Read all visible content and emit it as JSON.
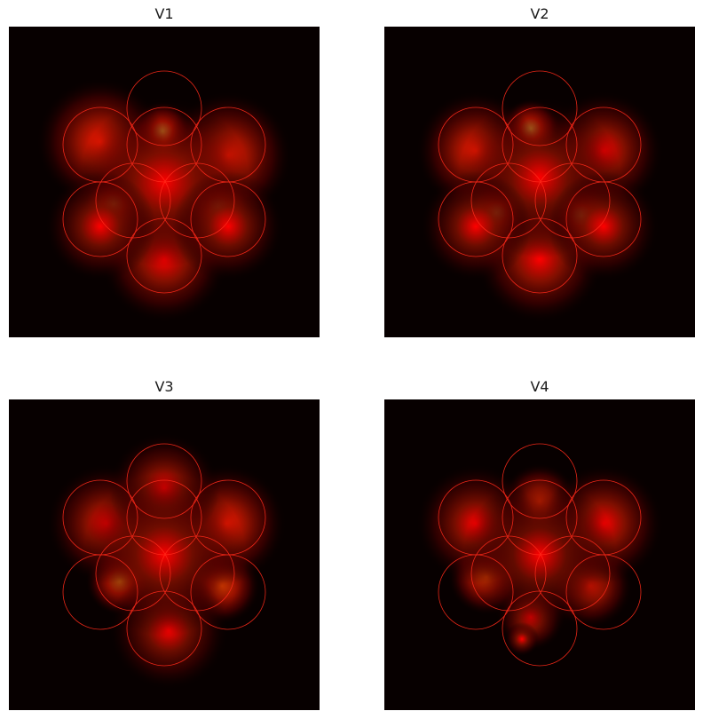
{
  "figure": {
    "background_color": "#ffffff",
    "panel_background": "#070000",
    "circle_color": "#ff2a1a",
    "colormap": "hot"
  },
  "chart_data": [
    {
      "type": "heatmap",
      "title": "V1",
      "xlabel": "",
      "ylabel": "",
      "axes_visible": false,
      "xlim": [
        0,
        350
      ],
      "ylim": [
        350,
        0
      ],
      "circles": [
        {
          "cx": 175,
          "cy": 92,
          "r": 42
        },
        {
          "cx": 103,
          "cy": 133,
          "r": 42
        },
        {
          "cx": 247,
          "cy": 133,
          "r": 42
        },
        {
          "cx": 175,
          "cy": 133,
          "r": 42
        },
        {
          "cx": 140,
          "cy": 196,
          "r": 42
        },
        {
          "cx": 212,
          "cy": 196,
          "r": 42
        },
        {
          "cx": 103,
          "cy": 217,
          "r": 42
        },
        {
          "cx": 247,
          "cy": 217,
          "r": 42
        },
        {
          "cx": 175,
          "cy": 258,
          "r": 42
        }
      ],
      "hotspots": [
        {
          "x": 173,
          "y": 118,
          "sigma": 14,
          "intensity": 0.95
        },
        {
          "x": 118,
          "y": 200,
          "sigma": 14,
          "intensity": 0.95
        },
        {
          "x": 236,
          "y": 203,
          "sigma": 14,
          "intensity": 1.0
        },
        {
          "x": 103,
          "y": 130,
          "sigma": 30,
          "intensity": 0.6
        },
        {
          "x": 247,
          "y": 145,
          "sigma": 30,
          "intensity": 0.6
        },
        {
          "x": 175,
          "y": 262,
          "sigma": 30,
          "intensity": 0.55
        },
        {
          "x": 175,
          "y": 175,
          "sigma": 40,
          "intensity": 0.5
        },
        {
          "x": 103,
          "y": 225,
          "sigma": 26,
          "intensity": 0.45
        },
        {
          "x": 247,
          "y": 225,
          "sigma": 26,
          "intensity": 0.45
        }
      ]
    },
    {
      "type": "heatmap",
      "title": "V2",
      "xlabel": "",
      "ylabel": "",
      "axes_visible": false,
      "xlim": [
        0,
        350
      ],
      "ylim": [
        350,
        0
      ],
      "circles": [
        {
          "cx": 175,
          "cy": 92,
          "r": 42
        },
        {
          "cx": 103,
          "cy": 133,
          "r": 42
        },
        {
          "cx": 247,
          "cy": 133,
          "r": 42
        },
        {
          "cx": 175,
          "cy": 133,
          "r": 42
        },
        {
          "cx": 140,
          "cy": 196,
          "r": 42
        },
        {
          "cx": 212,
          "cy": 196,
          "r": 42
        },
        {
          "cx": 103,
          "cy": 217,
          "r": 42
        },
        {
          "cx": 247,
          "cy": 217,
          "r": 42
        },
        {
          "cx": 175,
          "cy": 258,
          "r": 42
        }
      ],
      "hotspots": [
        {
          "x": 165,
          "y": 115,
          "sigma": 14,
          "intensity": 0.95
        },
        {
          "x": 126,
          "y": 210,
          "sigma": 14,
          "intensity": 1.0
        },
        {
          "x": 222,
          "y": 213,
          "sigma": 14,
          "intensity": 1.0
        },
        {
          "x": 103,
          "y": 140,
          "sigma": 28,
          "intensity": 0.6
        },
        {
          "x": 247,
          "y": 140,
          "sigma": 28,
          "intensity": 0.55
        },
        {
          "x": 175,
          "y": 262,
          "sigma": 30,
          "intensity": 0.55
        },
        {
          "x": 175,
          "y": 170,
          "sigma": 38,
          "intensity": 0.45
        },
        {
          "x": 103,
          "y": 225,
          "sigma": 26,
          "intensity": 0.45
        },
        {
          "x": 247,
          "y": 225,
          "sigma": 26,
          "intensity": 0.45
        }
      ]
    },
    {
      "type": "heatmap",
      "title": "V3",
      "xlabel": "",
      "ylabel": "",
      "axes_visible": false,
      "xlim": [
        0,
        350
      ],
      "ylim": [
        350,
        0
      ],
      "circles": [
        {
          "cx": 175,
          "cy": 92,
          "r": 42
        },
        {
          "cx": 103,
          "cy": 133,
          "r": 42
        },
        {
          "cx": 247,
          "cy": 133,
          "r": 42
        },
        {
          "cx": 175,
          "cy": 133,
          "r": 42
        },
        {
          "cx": 140,
          "cy": 196,
          "r": 42
        },
        {
          "cx": 212,
          "cy": 196,
          "r": 42
        },
        {
          "cx": 103,
          "cy": 217,
          "r": 42
        },
        {
          "cx": 247,
          "cy": 217,
          "r": 42
        },
        {
          "cx": 175,
          "cy": 258,
          "r": 42
        }
      ],
      "hotspots": [
        {
          "x": 125,
          "y": 205,
          "sigma": 16,
          "intensity": 0.85
        },
        {
          "x": 240,
          "y": 210,
          "sigma": 18,
          "intensity": 0.7
        },
        {
          "x": 110,
          "y": 140,
          "sigma": 28,
          "intensity": 0.55
        },
        {
          "x": 245,
          "y": 140,
          "sigma": 28,
          "intensity": 0.6
        },
        {
          "x": 175,
          "y": 100,
          "sigma": 26,
          "intensity": 0.5
        },
        {
          "x": 180,
          "y": 260,
          "sigma": 28,
          "intensity": 0.45
        },
        {
          "x": 175,
          "y": 175,
          "sigma": 38,
          "intensity": 0.45
        }
      ]
    },
    {
      "type": "heatmap",
      "title": "V4",
      "xlabel": "",
      "ylabel": "",
      "axes_visible": false,
      "xlim": [
        0,
        350
      ],
      "ylim": [
        350,
        0
      ],
      "circles": [
        {
          "cx": 175,
          "cy": 92,
          "r": 42
        },
        {
          "cx": 103,
          "cy": 133,
          "r": 42
        },
        {
          "cx": 247,
          "cy": 133,
          "r": 42
        },
        {
          "cx": 175,
          "cy": 133,
          "r": 42
        },
        {
          "cx": 140,
          "cy": 196,
          "r": 42
        },
        {
          "cx": 212,
          "cy": 196,
          "r": 42
        },
        {
          "cx": 103,
          "cy": 217,
          "r": 42
        },
        {
          "cx": 247,
          "cy": 217,
          "r": 42
        },
        {
          "cx": 175,
          "cy": 258,
          "r": 42
        }
      ],
      "hotspots": [
        {
          "x": 175,
          "y": 115,
          "sigma": 18,
          "intensity": 0.65
        },
        {
          "x": 115,
          "y": 200,
          "sigma": 18,
          "intensity": 0.7
        },
        {
          "x": 232,
          "y": 210,
          "sigma": 20,
          "intensity": 0.6
        },
        {
          "x": 103,
          "y": 140,
          "sigma": 28,
          "intensity": 0.5
        },
        {
          "x": 247,
          "y": 140,
          "sigma": 28,
          "intensity": 0.55
        },
        {
          "x": 165,
          "y": 245,
          "sigma": 16,
          "intensity": 0.55
        },
        {
          "x": 155,
          "y": 270,
          "sigma": 8,
          "intensity": 0.45
        },
        {
          "x": 175,
          "y": 175,
          "sigma": 36,
          "intensity": 0.4
        }
      ]
    }
  ]
}
